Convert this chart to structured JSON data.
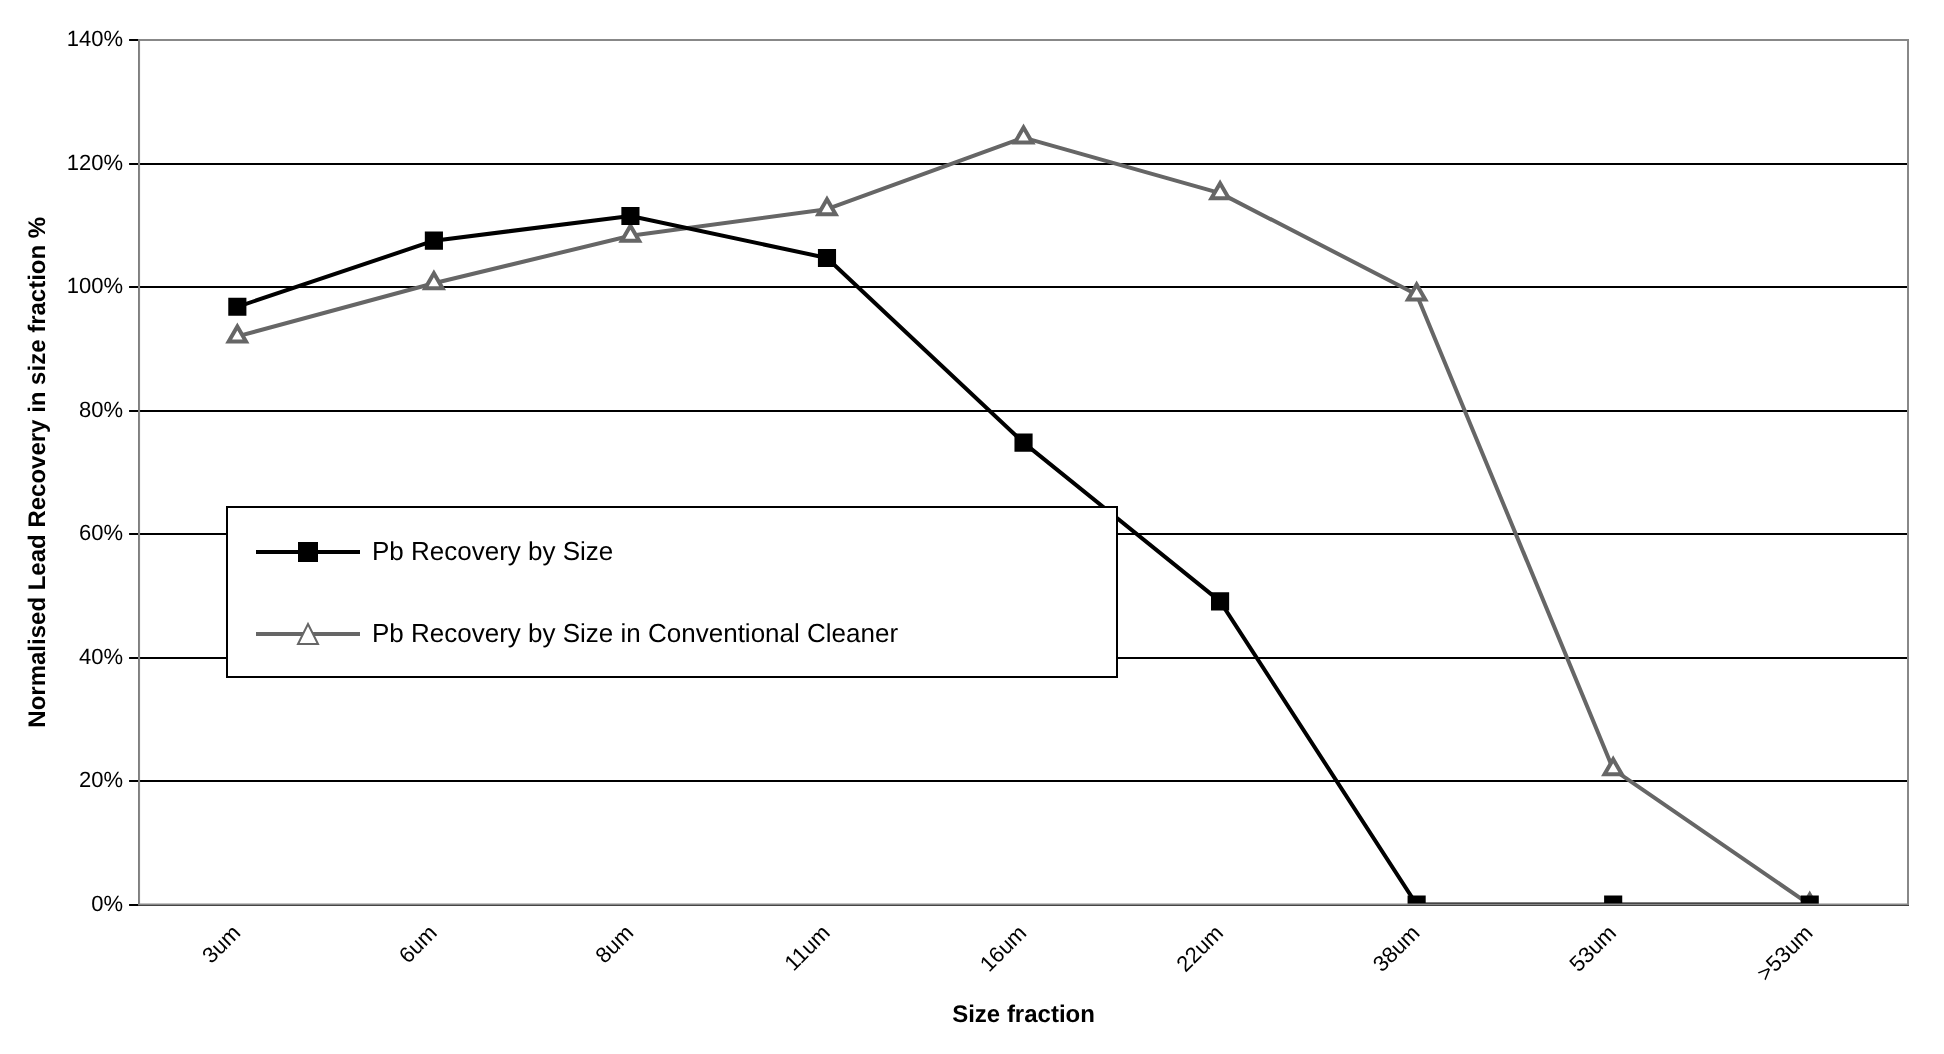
{
  "chart_data": {
    "type": "line",
    "xlabel": "Size fraction",
    "ylabel": "Normalised Lead Recovery in size fraction %",
    "categories": [
      "3um",
      "6um",
      "8um",
      "11um",
      "16um",
      "22um",
      "38um",
      "53um",
      ">53um"
    ],
    "series": [
      {
        "name": "Pb Recovery by Size",
        "color": "#000000",
        "marker": "square",
        "values": [
          96.8,
          107.5,
          111.5,
          104.7,
          74.8,
          49.1,
          0,
          0,
          0
        ]
      },
      {
        "name": "Pb Recovery by Size in Conventional Cleaner",
        "color": "#666666",
        "marker": "triangle",
        "values": [
          92,
          100.6,
          108.3,
          112.6,
          124.2,
          115.2,
          98.8,
          21.9,
          0
        ]
      }
    ],
    "ylim": [
      0,
      140
    ],
    "yticks": [
      {
        "value": 0,
        "label": "0%"
      },
      {
        "value": 20,
        "label": "20%"
      },
      {
        "value": 40,
        "label": "40%"
      },
      {
        "value": 60,
        "label": "60%"
      },
      {
        "value": 80,
        "label": "80%"
      },
      {
        "value": 100,
        "label": "100%"
      },
      {
        "value": 120,
        "label": "120%"
      },
      {
        "value": 140,
        "label": "140%"
      }
    ],
    "grid": "y",
    "legend": "left",
    "line_style": "solid"
  }
}
